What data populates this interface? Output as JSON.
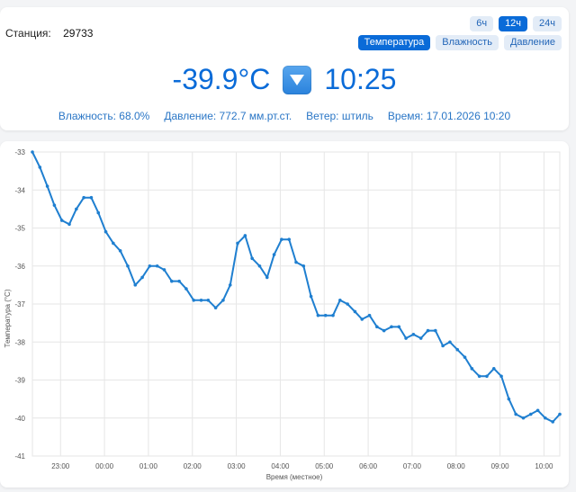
{
  "station": {
    "label": "Станция:",
    "value": "29733"
  },
  "range_buttons": [
    {
      "label": "6ч",
      "active": false
    },
    {
      "label": "12ч",
      "active": true
    },
    {
      "label": "24ч",
      "active": false
    }
  ],
  "metric_buttons": [
    {
      "label": "Температура",
      "active": true
    },
    {
      "label": "Влажность",
      "active": false
    },
    {
      "label": "Давление",
      "active": false
    }
  ],
  "current": {
    "temperature": "-39.9°C",
    "trend_icon": "down-arrow-icon",
    "time": "10:25"
  },
  "info": {
    "humidity": "Влажность: 68.0%",
    "pressure": "Давление: 772.7 мм.рт.ст.",
    "wind": "Ветер: штиль",
    "time": "Время: 17.01.2026 10:20"
  },
  "colors": {
    "accent": "#0a6bd8",
    "line": "#1f7fd0",
    "grid": "#e6e6e6"
  },
  "chart_data": {
    "type": "line",
    "xlabel": "Время (местное)",
    "ylabel": "Температура (°C)",
    "ylim": [
      -41,
      -33
    ],
    "yticks": [
      "-33",
      "-34",
      "-35",
      "-36",
      "-37",
      "-38",
      "-39",
      "-40",
      "-41"
    ],
    "xticks": [
      {
        "label": "23:00",
        "t": 22.97
      },
      {
        "label": "00:00",
        "t": 23.97
      },
      {
        "label": "01:00",
        "t": 24.97
      },
      {
        "label": "02:00",
        "t": 25.97
      },
      {
        "label": "03:00",
        "t": 26.97
      },
      {
        "label": "04:00",
        "t": 27.97
      },
      {
        "label": "05:00",
        "t": 28.97
      },
      {
        "label": "06:00",
        "t": 29.97
      },
      {
        "label": "07:00",
        "t": 30.97
      },
      {
        "label": "08:00",
        "t": 31.97
      },
      {
        "label": "09:00",
        "t": 32.97
      },
      {
        "label": "10:00",
        "t": 33.97
      }
    ],
    "xlim": [
      22.33,
      34.33
    ],
    "grid": true,
    "series": [
      {
        "points": [
          [
            22.33,
            -33.0
          ],
          [
            22.5,
            -33.4
          ],
          [
            22.67,
            -33.9
          ],
          [
            22.83,
            -34.4
          ],
          [
            23.0,
            -34.8
          ],
          [
            23.17,
            -34.9
          ],
          [
            23.33,
            -34.5
          ],
          [
            23.5,
            -34.2
          ],
          [
            23.67,
            -34.2
          ],
          [
            23.83,
            -34.6
          ],
          [
            24.0,
            -35.1
          ],
          [
            24.17,
            -35.4
          ],
          [
            24.33,
            -35.6
          ],
          [
            24.5,
            -36.0
          ],
          [
            24.67,
            -36.5
          ],
          [
            24.83,
            -36.3
          ],
          [
            25.0,
            -36.0
          ],
          [
            25.17,
            -36.0
          ],
          [
            25.33,
            -36.1
          ],
          [
            25.5,
            -36.4
          ],
          [
            25.67,
            -36.4
          ],
          [
            25.83,
            -36.6
          ],
          [
            26.0,
            -36.9
          ],
          [
            26.17,
            -36.9
          ],
          [
            26.33,
            -36.9
          ],
          [
            26.5,
            -37.1
          ],
          [
            26.67,
            -36.9
          ],
          [
            26.83,
            -36.5
          ],
          [
            27.0,
            -35.4
          ],
          [
            27.17,
            -35.2
          ],
          [
            27.33,
            -35.8
          ],
          [
            27.5,
            -36.0
          ],
          [
            27.67,
            -36.3
          ],
          [
            27.83,
            -35.7
          ],
          [
            28.0,
            -35.3
          ],
          [
            28.17,
            -35.3
          ],
          [
            28.33,
            -35.9
          ],
          [
            28.5,
            -36.0
          ],
          [
            28.67,
            -36.8
          ],
          [
            28.83,
            -37.3
          ],
          [
            29.0,
            -37.3
          ],
          [
            29.17,
            -37.3
          ],
          [
            29.33,
            -36.9
          ],
          [
            29.5,
            -37.0
          ],
          [
            29.67,
            -37.2
          ],
          [
            29.83,
            -37.4
          ],
          [
            30.0,
            -37.3
          ],
          [
            30.17,
            -37.6
          ],
          [
            30.33,
            -37.7
          ],
          [
            30.5,
            -37.6
          ],
          [
            30.67,
            -37.6
          ],
          [
            30.83,
            -37.9
          ],
          [
            31.0,
            -37.8
          ],
          [
            31.17,
            -37.9
          ],
          [
            31.33,
            -37.7
          ],
          [
            31.5,
            -37.7
          ],
          [
            31.67,
            -38.1
          ],
          [
            31.83,
            -38.0
          ],
          [
            32.0,
            -38.2
          ],
          [
            32.17,
            -38.4
          ],
          [
            32.33,
            -38.7
          ],
          [
            32.5,
            -38.9
          ],
          [
            32.67,
            -38.9
          ],
          [
            32.83,
            -38.7
          ],
          [
            33.0,
            -38.9
          ],
          [
            33.17,
            -39.5
          ],
          [
            33.33,
            -39.9
          ],
          [
            33.5,
            -40.0
          ],
          [
            33.67,
            -39.9
          ],
          [
            33.83,
            -39.8
          ],
          [
            34.0,
            -40.0
          ],
          [
            34.17,
            -40.1
          ],
          [
            34.33,
            -39.9
          ]
        ]
      }
    ]
  }
}
